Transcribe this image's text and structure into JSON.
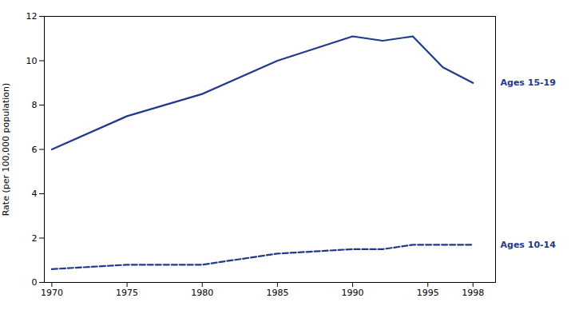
{
  "chart_data": {
    "type": "line",
    "x": [
      1970,
      1975,
      1980,
      1985,
      1990,
      1992,
      1994,
      1996,
      1998
    ],
    "series": [
      {
        "name": "Ages 15-19",
        "color": "#1F3A8A",
        "line_style": "solid",
        "values": [
          6.0,
          7.5,
          8.5,
          10.0,
          11.1,
          10.9,
          11.1,
          9.7,
          9.0
        ]
      },
      {
        "name": "Ages 10-14",
        "color": "#1F3A8A",
        "line_style": "dashed",
        "values": [
          0.6,
          0.8,
          0.8,
          1.3,
          1.5,
          1.5,
          1.7,
          1.7,
          1.7
        ]
      }
    ],
    "ylabel": "Rate (per 100,000 population)",
    "xlim": [
      1969.5,
      1999.5
    ],
    "ylim": [
      0,
      12
    ],
    "xticks": [
      1970,
      1975,
      1980,
      1985,
      1990,
      1995,
      1998
    ],
    "yticks": [
      0,
      2,
      4,
      6,
      8,
      10,
      12
    ],
    "grid": false
  }
}
